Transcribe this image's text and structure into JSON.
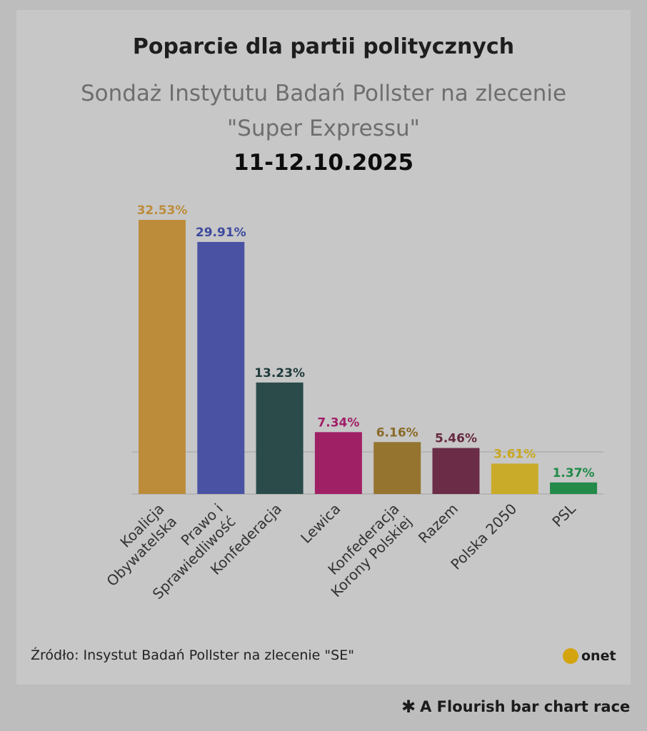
{
  "header": {
    "title": "Poparcie dla partii politycznych",
    "subtitle_line1": "Sondaż Instytutu Badań Pollster na zlecenie",
    "subtitle_line2": "\"Super Expressu\"",
    "date": "11-12.10.2025"
  },
  "footer": {
    "source": "Źródło: Insystut Badań Pollster na zlecenie \"SE\"",
    "brand": "onet",
    "brand_color": "#d4a40f",
    "flourish_label": "A Flourish bar chart race",
    "flourish_icon": "asterisk-icon"
  },
  "chart_data": {
    "type": "bar",
    "categories": [
      [
        "Koalicja",
        "Obywatelska"
      ],
      [
        "Prawo i",
        "Sprawiedliwość"
      ],
      [
        "Konfederacja"
      ],
      [
        "Lewica"
      ],
      [
        "Konfederacja",
        "Korony Polskiej"
      ],
      [
        "Razem"
      ],
      [
        "Polska 2050"
      ],
      [
        "PSL"
      ]
    ],
    "values": [
      32.53,
      29.91,
      13.23,
      7.34,
      6.16,
      5.46,
      3.61,
      1.37
    ],
    "labels": [
      "32.53%",
      "29.91%",
      "13.23%",
      "7.34%",
      "6.16%",
      "5.46%",
      "3.61%",
      "1.37%"
    ],
    "colors": [
      "#bd8c3b",
      "#4a52a3",
      "#2b4a4a",
      "#a02066",
      "#957430",
      "#6b2c47",
      "#c9ab29",
      "#238a4a"
    ],
    "label_colors": [
      "#bd8c3b",
      "#3c4a9e",
      "#1f3a3a",
      "#a01f66",
      "#8a6a28",
      "#66283f",
      "#c9a820",
      "#1f8a48"
    ],
    "ylim": [
      0,
      32.53
    ],
    "gridline": 5,
    "grid": true,
    "legend": false
  }
}
